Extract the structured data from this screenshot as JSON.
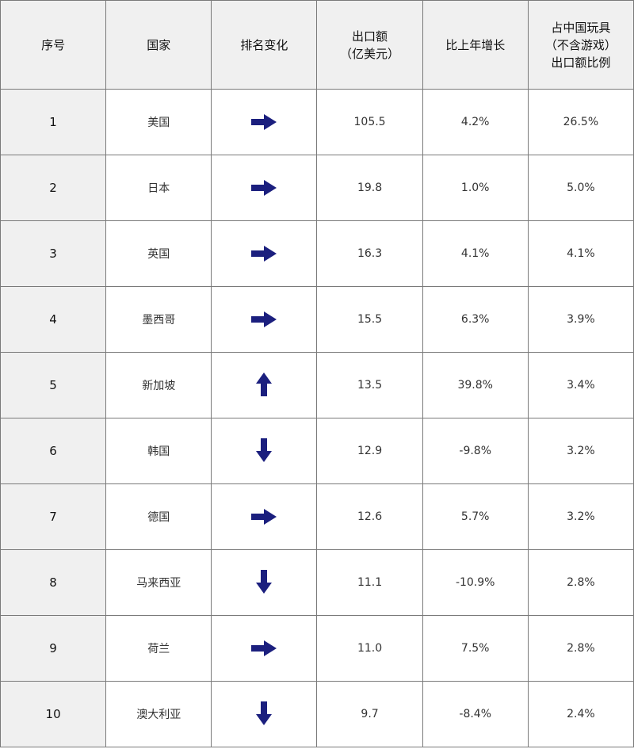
{
  "colors": {
    "arrow": "#1b1f7e",
    "header_bg": "#f0f0f0",
    "border": "#7a7a7a"
  },
  "headers": [
    "序号",
    "国家",
    "排名变化",
    "出口额\n（亿美元）",
    "比上年增长",
    "占中国玩具\n（不含游戏）\n出口额比例"
  ],
  "rows": [
    {
      "no": "1",
      "country": "美国",
      "change": "arrow-right",
      "export": "105.5",
      "growth": "4.2%",
      "share": "26.5%"
    },
    {
      "no": "2",
      "country": "日本",
      "change": "arrow-right",
      "export": "19.8",
      "growth": "1.0%",
      "share": "5.0%"
    },
    {
      "no": "3",
      "country": "英国",
      "change": "arrow-right",
      "export": "16.3",
      "growth": "4.1%",
      "share": "4.1%"
    },
    {
      "no": "4",
      "country": "墨西哥",
      "change": "arrow-right",
      "export": "15.5",
      "growth": "6.3%",
      "share": "3.9%"
    },
    {
      "no": "5",
      "country": "新加坡",
      "change": "arrow-up",
      "export": "13.5",
      "growth": "39.8%",
      "share": "3.4%"
    },
    {
      "no": "6",
      "country": "韩国",
      "change": "arrow-down",
      "export": "12.9",
      "growth": "-9.8%",
      "share": "3.2%"
    },
    {
      "no": "7",
      "country": "德国",
      "change": "arrow-right",
      "export": "12.6",
      "growth": "5.7%",
      "share": "3.2%"
    },
    {
      "no": "8",
      "country": "马来西亚",
      "change": "arrow-down",
      "export": "11.1",
      "growth": "-10.9%",
      "share": "2.8%"
    },
    {
      "no": "9",
      "country": "荷兰",
      "change": "arrow-right",
      "export": "11.0",
      "growth": "7.5%",
      "share": "2.8%"
    },
    {
      "no": "10",
      "country": "澳大利亚",
      "change": "arrow-down",
      "export": "9.7",
      "growth": "-8.4%",
      "share": "2.4%"
    }
  ]
}
